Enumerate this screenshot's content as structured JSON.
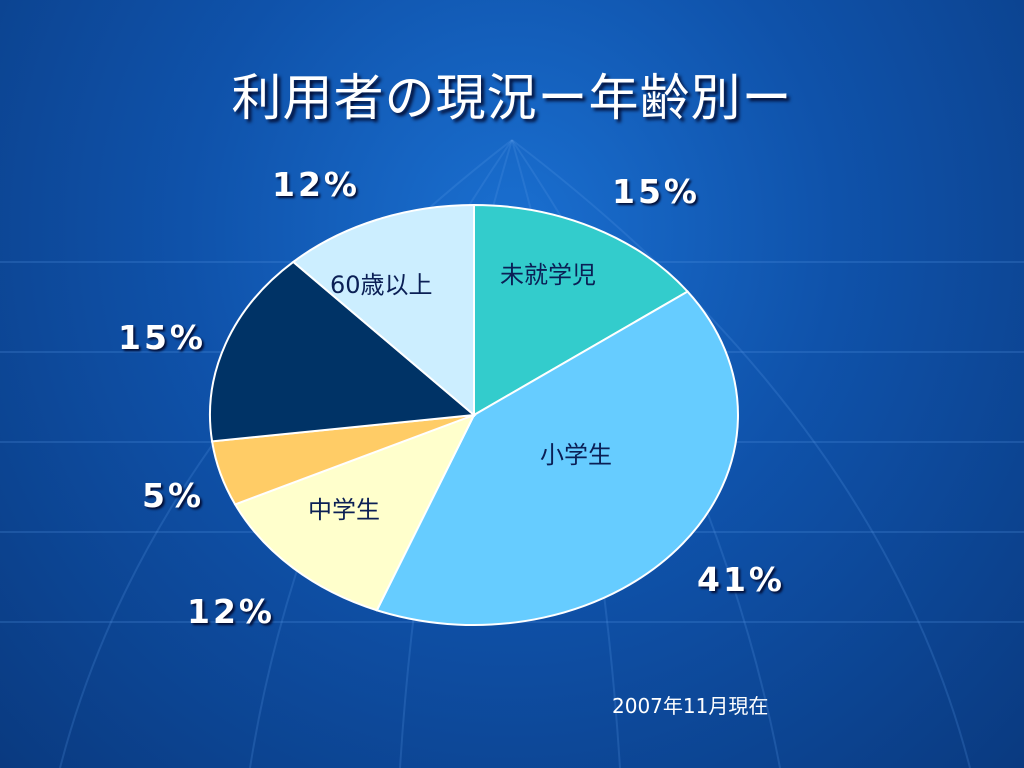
{
  "slide": {
    "title": "利用者の現況ー年齢別ー",
    "footnote": "2007年11月現在"
  },
  "colors": {
    "background": "#0f52aa",
    "slice_outline": "#ffffff"
  },
  "chart_data": {
    "type": "pie",
    "title": "",
    "slices": [
      {
        "label": "未就学児",
        "value": 15,
        "value_label": "15%",
        "color": "#33cccc"
      },
      {
        "label": "小学生",
        "value": 41,
        "value_label": "41%",
        "color": "#66ccff"
      },
      {
        "label": "中学生",
        "value": 12,
        "value_label": "12%",
        "color": "#ffffcc"
      },
      {
        "label": "",
        "value": 5,
        "value_label": "5%",
        "color": "#ffcc66"
      },
      {
        "label": "",
        "value": 15,
        "value_label": "15%",
        "color": "#003366"
      },
      {
        "label": "60歳以上",
        "value": 12,
        "value_label": "12%",
        "color": "#cceeff"
      }
    ],
    "legend": "none"
  }
}
